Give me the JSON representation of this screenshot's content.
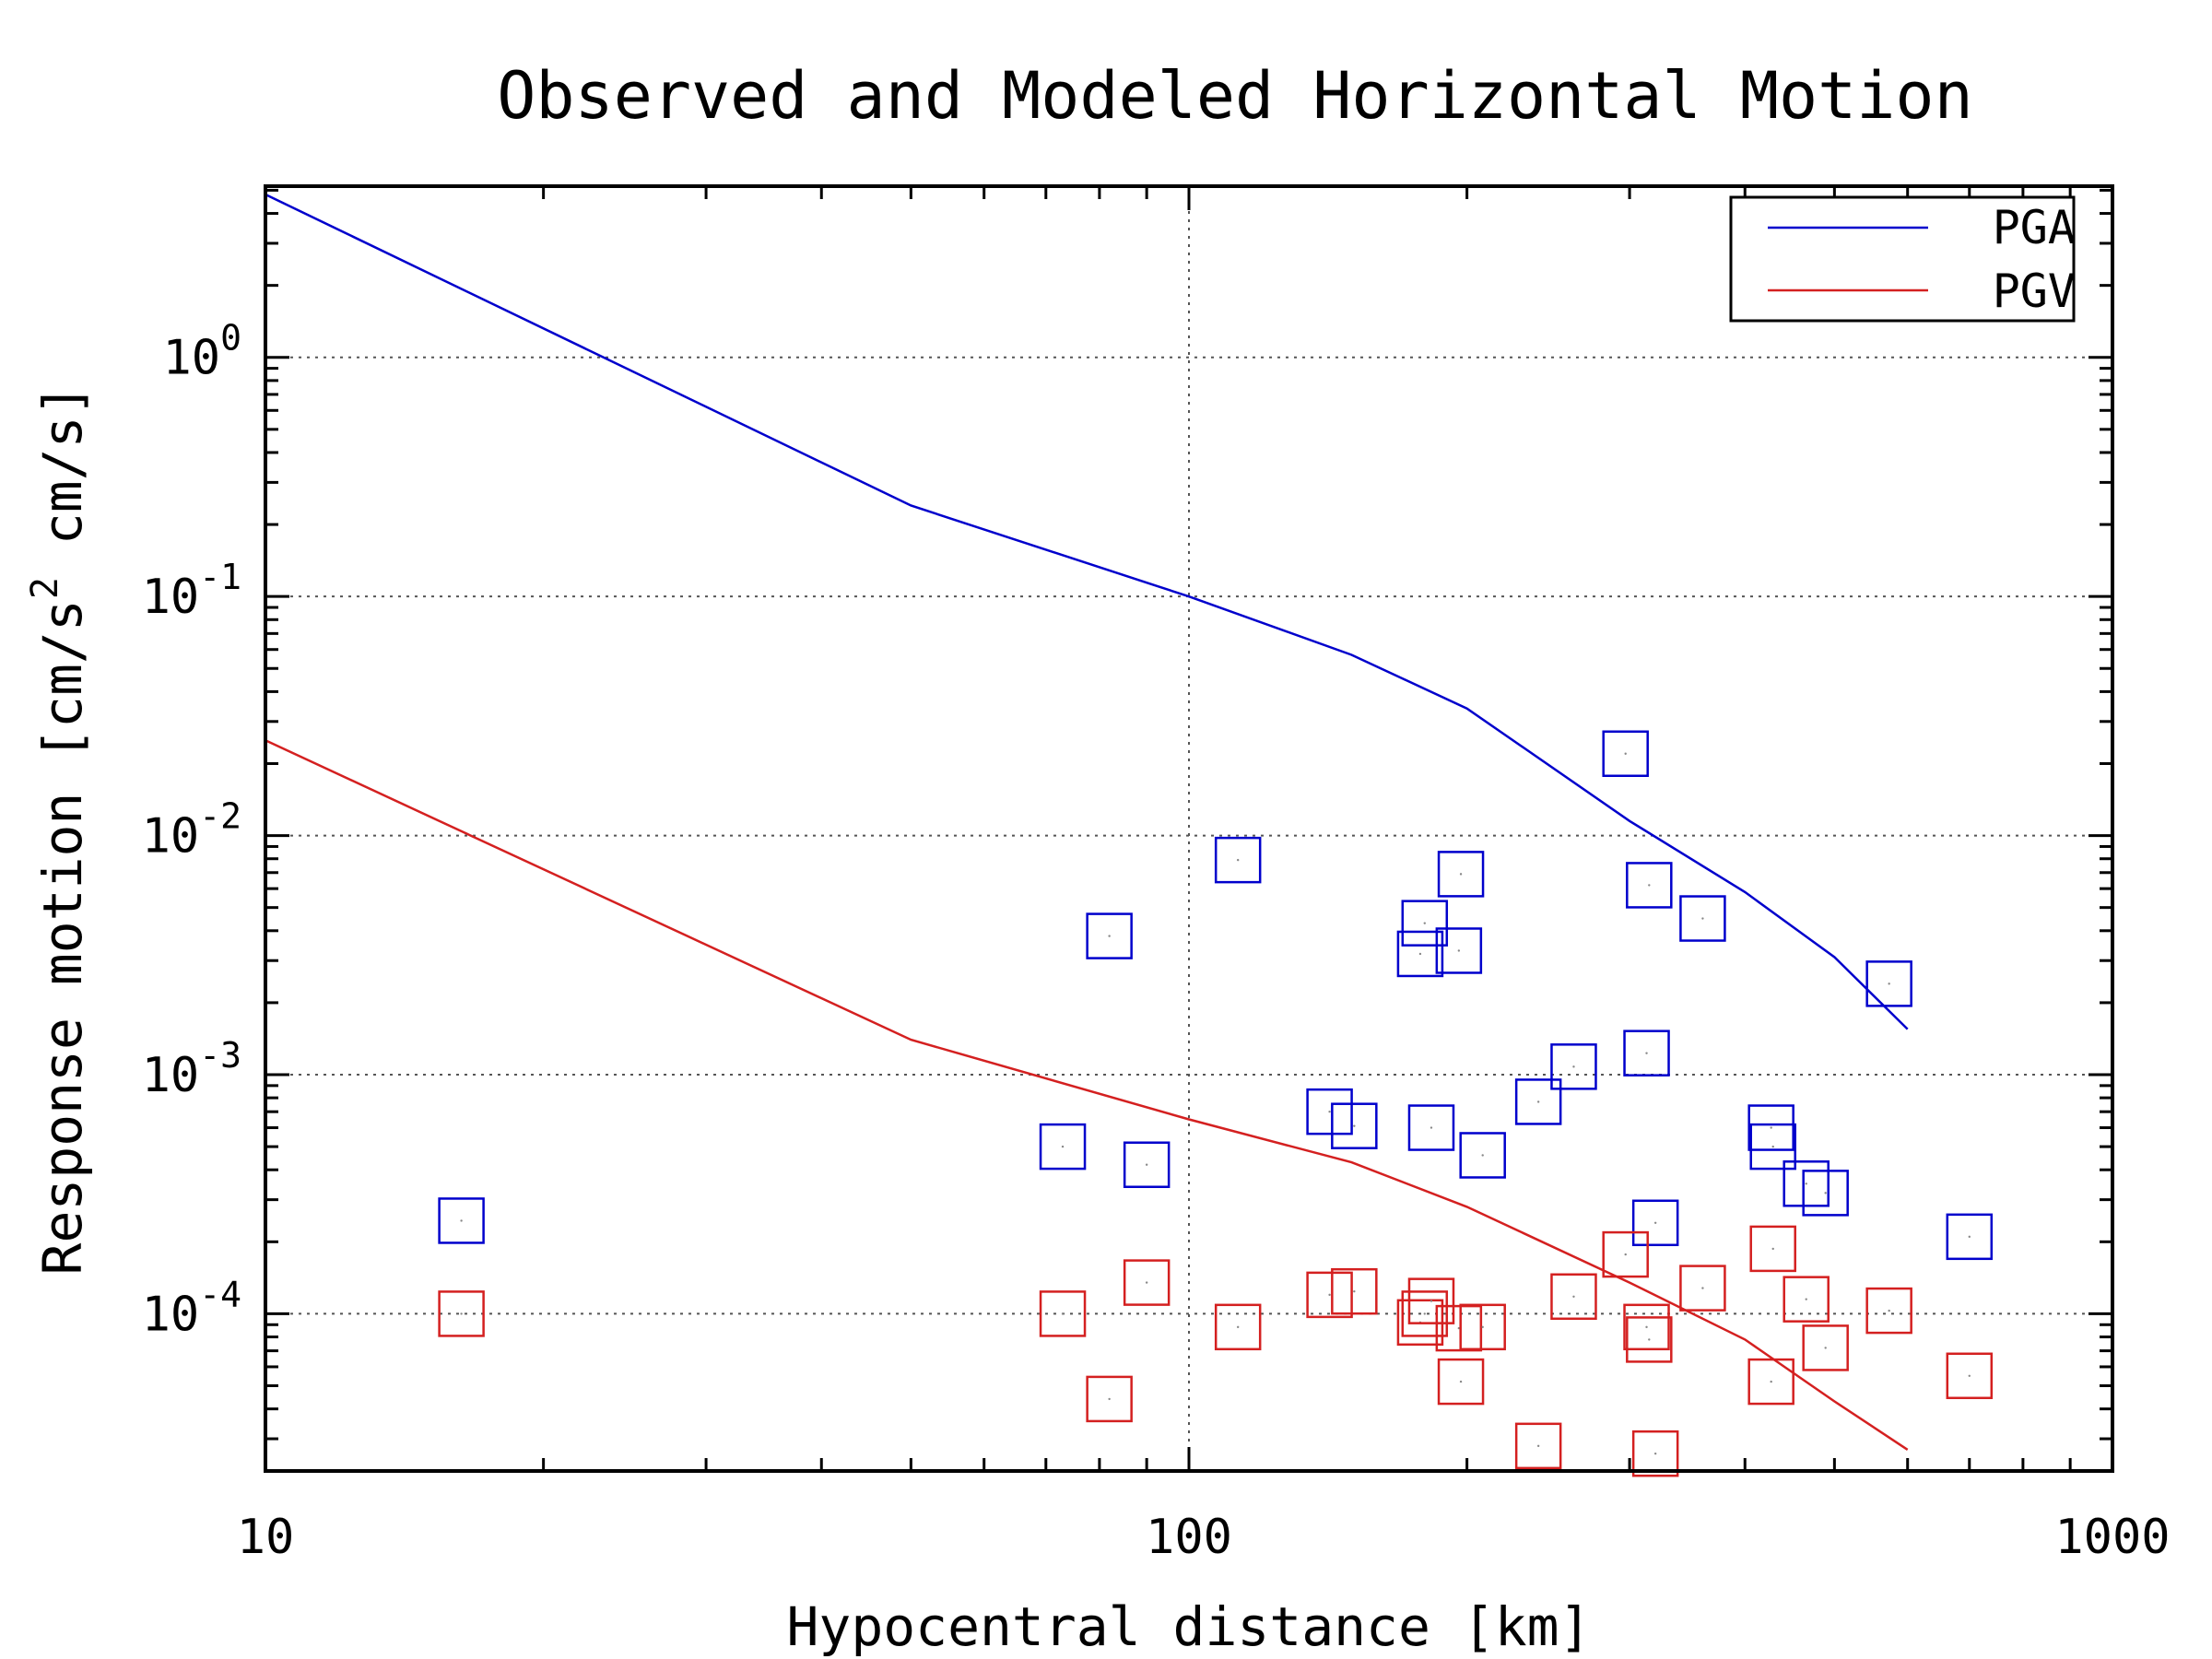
{
  "chart_data": {
    "type": "scatter",
    "title": "Observed and Modeled Horizontal Motion",
    "xlabel": "Hypocentral distance [km]",
    "ylabel_parts": [
      "Response motion [cm/s",
      "2",
      " cm/s]"
    ],
    "x_scale": "log",
    "y_scale": "log",
    "xlim": [
      10,
      1000
    ],
    "ylim": [
      2.2e-05,
      5.2
    ],
    "x_ticks": [
      {
        "value": 10,
        "label": "10"
      },
      {
        "value": 100,
        "label": "100"
      },
      {
        "value": 1000,
        "label": "1000"
      }
    ],
    "y_ticks": [
      {
        "value": 1,
        "base": "10",
        "exp": "0"
      },
      {
        "value": 0.1,
        "base": "10",
        "exp": "-1"
      },
      {
        "value": 0.01,
        "base": "10",
        "exp": "-2"
      },
      {
        "value": 0.001,
        "base": "10",
        "exp": "-3"
      },
      {
        "value": 0.0001,
        "base": "10",
        "exp": "-4"
      }
    ],
    "grid": true,
    "legend_position": "top-right",
    "series": [
      {
        "name": "PGA",
        "kind": "line",
        "color": "#0000cc",
        "points": [
          [
            10,
            4.8
          ],
          [
            50,
            0.24
          ],
          [
            100,
            0.1
          ],
          [
            150,
            0.057
          ],
          [
            200,
            0.034
          ],
          [
            300,
            0.0115
          ],
          [
            400,
            0.0058
          ],
          [
            500,
            0.0031
          ],
          [
            600,
            0.00155
          ]
        ]
      },
      {
        "name": "PGV",
        "kind": "line",
        "color": "#d42020",
        "points": [
          [
            10,
            0.025
          ],
          [
            50,
            0.0014
          ],
          [
            100,
            0.00065
          ],
          [
            150,
            0.00043
          ],
          [
            200,
            0.00028
          ],
          [
            300,
            0.000135
          ],
          [
            400,
            7.8e-05
          ],
          [
            500,
            4.3e-05
          ],
          [
            600,
            2.7e-05
          ]
        ]
      },
      {
        "name": "",
        "kind": "markers",
        "color": "#0000cc",
        "points": [
          [
            16.3,
            0.000245
          ],
          [
            73,
            0.0005
          ],
          [
            82,
            0.0038
          ],
          [
            90,
            0.00042
          ],
          [
            113,
            0.0079
          ],
          [
            142,
            0.0007
          ],
          [
            151,
            0.00061
          ],
          [
            178,
            0.0032
          ],
          [
            180,
            0.0043
          ],
          [
            183,
            0.0006
          ],
          [
            196,
            0.0033
          ],
          [
            197,
            0.0069
          ],
          [
            208,
            0.00046
          ],
          [
            239,
            0.00077
          ],
          [
            261,
            0.00108
          ],
          [
            297,
            0.022
          ],
          [
            313,
            0.00123
          ],
          [
            315,
            0.0062
          ],
          [
            320,
            0.00024
          ],
          [
            360,
            0.0045
          ],
          [
            427,
            0.0006
          ],
          [
            429,
            0.0005
          ],
          [
            466,
            0.00035
          ],
          [
            489,
            0.00032
          ],
          [
            573,
            0.0024
          ],
          [
            700,
            0.00021
          ]
        ]
      },
      {
        "name": "",
        "kind": "markers",
        "color": "#d42020",
        "points": [
          [
            16.3,
            0.0001
          ],
          [
            73,
            0.0001
          ],
          [
            82,
            4.4e-05
          ],
          [
            90,
            0.000135
          ],
          [
            113,
            8.8e-05
          ],
          [
            142,
            0.00012
          ],
          [
            151,
            0.000124
          ],
          [
            178,
            9.2e-05
          ],
          [
            180,
            0.0001
          ],
          [
            183,
            0.000113
          ],
          [
            196,
            8.7e-05
          ],
          [
            197,
            5.2e-05
          ],
          [
            208,
            8.8e-05
          ],
          [
            239,
            2.8e-05
          ],
          [
            261,
            0.000118
          ],
          [
            297,
            0.000177
          ],
          [
            313,
            8.8e-05
          ],
          [
            315,
            7.8e-05
          ],
          [
            320,
            2.6e-05
          ],
          [
            360,
            0.000128
          ],
          [
            427,
            5.2e-05
          ],
          [
            429,
            0.000187
          ],
          [
            466,
            0.000115
          ],
          [
            489,
            7.2e-05
          ],
          [
            573,
            0.000103
          ],
          [
            700,
            5.5e-05
          ]
        ]
      }
    ]
  }
}
